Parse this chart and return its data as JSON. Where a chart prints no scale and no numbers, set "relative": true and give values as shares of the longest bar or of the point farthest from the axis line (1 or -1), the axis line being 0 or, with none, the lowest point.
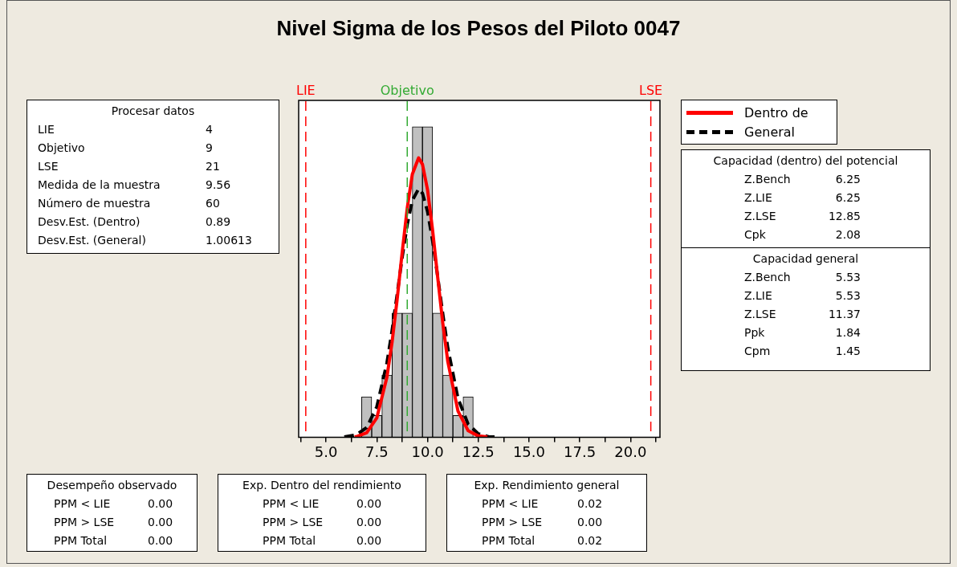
{
  "chart_data": {
    "type": "histogram",
    "title": "Nivel Sigma de los Pesos del Piloto 0047",
    "relative": true,
    "color": "#c0c0c0",
    "bins": [
      6.75,
      7.25,
      7.75,
      8.25,
      8.75,
      9.25,
      9.75,
      10.25,
      10.75,
      11.25,
      11.75,
      12.25
    ],
    "values": [
      0.13,
      0.07,
      0.2,
      0.4,
      0.4,
      1,
      1,
      0.4,
      0.2,
      0.07,
      0.13
    ],
    "series": [
      {
        "type": "line",
        "name": "Dentro de",
        "color": "#ff0000",
        "line_style": "solid",
        "x": [
          6.4,
          6.5,
          7,
          7.5,
          8,
          8.25,
          8.5,
          8.75,
          9,
          9.25,
          9.56,
          9.75,
          10,
          10.25,
          10.5,
          10.75,
          11,
          11.5,
          12,
          12.5,
          12.95
        ],
        "values": [
          0.002,
          0.002,
          0.014,
          0.062,
          0.194,
          0.305,
          0.443,
          0.595,
          0.738,
          0.847,
          0.9,
          0.879,
          0.797,
          0.666,
          0.515,
          0.368,
          0.243,
          0.084,
          0.021,
          0.004,
          0.001
        ]
      },
      {
        "type": "line",
        "name": "General",
        "color": "#000000",
        "line_style": "dashed",
        "x": [
          5.9,
          6.5,
          7,
          7.5,
          8,
          8.25,
          8.5,
          8.75,
          9,
          9.25,
          9.56,
          9.75,
          10,
          10.25,
          10.5,
          10.75,
          11,
          11.5,
          12,
          12.5,
          13,
          13.3
        ],
        "values": [
          0.001,
          0.008,
          0.031,
          0.098,
          0.24,
          0.343,
          0.459,
          0.579,
          0.685,
          0.763,
          0.8,
          0.786,
          0.727,
          0.632,
          0.517,
          0.398,
          0.287,
          0.125,
          0.042,
          0.011,
          0.002,
          0.001
        ]
      }
    ],
    "xlim": [
      3.65,
      21.45
    ],
    "xticks": [
      {
        "value": 3.75,
        "label": null
      },
      {
        "value": 5,
        "label": "5.0"
      },
      {
        "value": 6.25,
        "label": null
      },
      {
        "value": 7.5,
        "label": "7.5"
      },
      {
        "value": 8.75,
        "label": null
      },
      {
        "value": 10,
        "label": "10.0"
      },
      {
        "value": 11.25,
        "label": null
      },
      {
        "value": 12.5,
        "label": "12.5"
      },
      {
        "value": 13.75,
        "label": null
      },
      {
        "value": 15,
        "label": "15.0"
      },
      {
        "value": 16.25,
        "label": null
      },
      {
        "value": 17.5,
        "label": "17.5"
      },
      {
        "value": 18.75,
        "label": null
      },
      {
        "value": 20,
        "label": "20.0"
      },
      {
        "value": 21.25,
        "label": null
      }
    ],
    "ref_lines": [
      {
        "axis": "x",
        "value": 4,
        "label": "LIE",
        "color": "#ff0000",
        "line_style": "dashed"
      },
      {
        "axis": "x",
        "value": 9,
        "label": "Objetivo",
        "color": "#33aa33",
        "line_style": "dashed"
      },
      {
        "axis": "x",
        "value": 21,
        "label": "LSE",
        "color": "#ff0000",
        "line_style": "dashed"
      }
    ],
    "legend": "right",
    "annotations": [
      "Procesar datos",
      "LIE 4",
      "Objetivo 9",
      "LSE 21",
      "Medida de la muestra 9.56",
      "Número de muestra 60",
      "Desv.Est. (Dentro) 0.89",
      "Desv.Est. (General) 1.00613",
      "Capacidad (dentro) del potencial",
      "Z.Bench 6.25",
      "Z.LIE 6.25",
      "Z.LSE 12.85",
      "Cpk 2.08",
      "Capacidad general",
      "Z.Bench 5.53",
      "Z.LIE 5.53",
      "Z.LSE 11.37",
      "Ppk 1.84",
      "Cpm 1.45",
      "Desempeño observado",
      "PPM < LIE 0.00",
      "PPM > LSE 0.00",
      "PPM Total 0.00",
      "Exp. Dentro del rendimiento",
      "PPM < LIE 0.00",
      "PPM > LSE 0.00",
      "PPM Total 0.00",
      "Exp. Rendimiento general",
      "PPM < LIE 0.02",
      "PPM > LSE 0.00",
      "PPM Total 0.02"
    ]
  }
}
